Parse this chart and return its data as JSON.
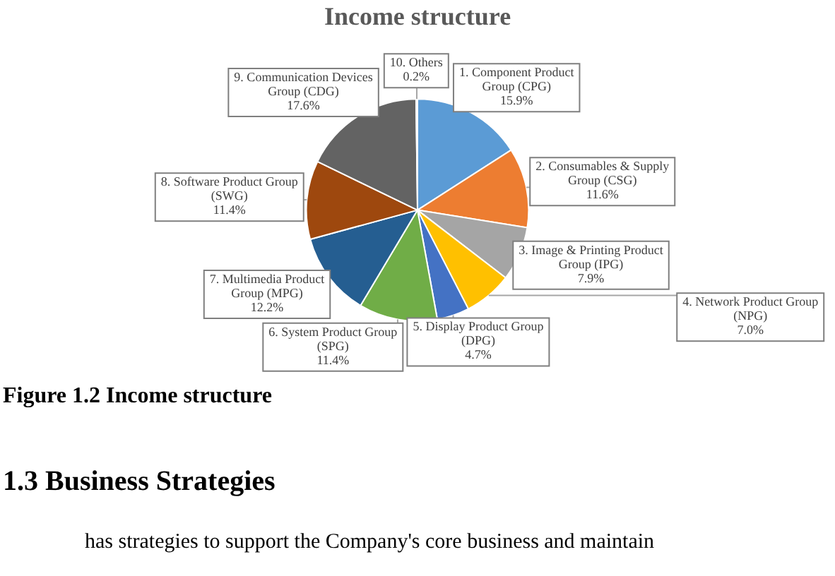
{
  "chart_data": {
    "type": "pie",
    "title": "Income structure",
    "categories": [
      "1. Component Product Group (CPG)",
      "2. Consumables & Supply Group (CSG)",
      "3. Image & Printing Product Group (IPG)",
      "4. Network Product Group (NPG)",
      "5. Display Product Group (DPG)",
      "6. System Product Group (SPG)",
      "7. Multimedia Product Group (MPG)",
      "8. Software Product Group (SWG)",
      "9. Communication Devices Group (CDG)",
      "10. Others"
    ],
    "values": [
      15.9,
      11.6,
      7.9,
      7.0,
      4.7,
      11.4,
      12.2,
      11.4,
      17.6,
      0.2
    ],
    "value_labels": [
      "15.9%",
      "11.6%",
      "7.9%",
      "7.0%",
      "4.7%",
      "11.4%",
      "12.2%",
      "11.4%",
      "17.6%",
      "0.2%"
    ],
    "colors": [
      "#5b9bd5",
      "#ed7d31",
      "#a5a5a5",
      "#ffc000",
      "#4472c4",
      "#70ad47",
      "#255e91",
      "#9e480e",
      "#636363",
      "#997300"
    ],
    "legend": false,
    "annotations": [
      "Figure 1.2  Income structure",
      "1.3  Business Strategies",
      "has strategies to support the Company's core business and maintain"
    ]
  }
}
